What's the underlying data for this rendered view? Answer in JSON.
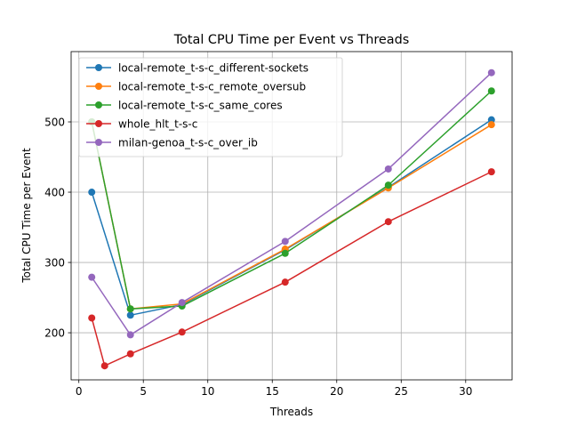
{
  "chart_data": {
    "type": "line",
    "title": "Total CPU Time per Event vs Threads",
    "xlabel": "Threads",
    "ylabel": "Total CPU Time per Event",
    "xlim": [
      -0.6,
      33.6
    ],
    "ylim": [
      133,
      600
    ],
    "xticks": [
      0,
      5,
      10,
      15,
      20,
      25,
      30
    ],
    "yticks": [
      200,
      300,
      400,
      500
    ],
    "grid": true,
    "legend_position": "top-left",
    "series": [
      {
        "name": "local-remote_t-s-c_different-sockets",
        "color": "#1f77b4",
        "x": [
          1,
          4,
          8,
          16,
          24,
          32
        ],
        "y": [
          400,
          225,
          240,
          318,
          407,
          503
        ]
      },
      {
        "name": "local-remote_t-s-c_remote_oversub",
        "color": "#ff7f0e",
        "x": [
          1,
          4,
          8,
          16,
          24,
          32
        ],
        "y": [
          500,
          234,
          241,
          319,
          406,
          496
        ]
      },
      {
        "name": "local-remote_t-s-c_same_cores",
        "color": "#2ca02c",
        "x": [
          1,
          4,
          8,
          16,
          24,
          32
        ],
        "y": [
          500,
          234,
          238,
          313,
          410,
          544
        ]
      },
      {
        "name": "whole_hlt_t-s-c",
        "color": "#d62728",
        "x": [
          1,
          2,
          4,
          8,
          16,
          24,
          32
        ],
        "y": [
          221,
          153,
          170,
          201,
          272,
          358,
          429
        ]
      },
      {
        "name": "milan-genoa_t-s-c_over_ib",
        "color": "#9467bd",
        "x": [
          1,
          4,
          8,
          16,
          24,
          32
        ],
        "y": [
          279,
          197,
          243,
          330,
          433,
          570
        ]
      }
    ]
  }
}
